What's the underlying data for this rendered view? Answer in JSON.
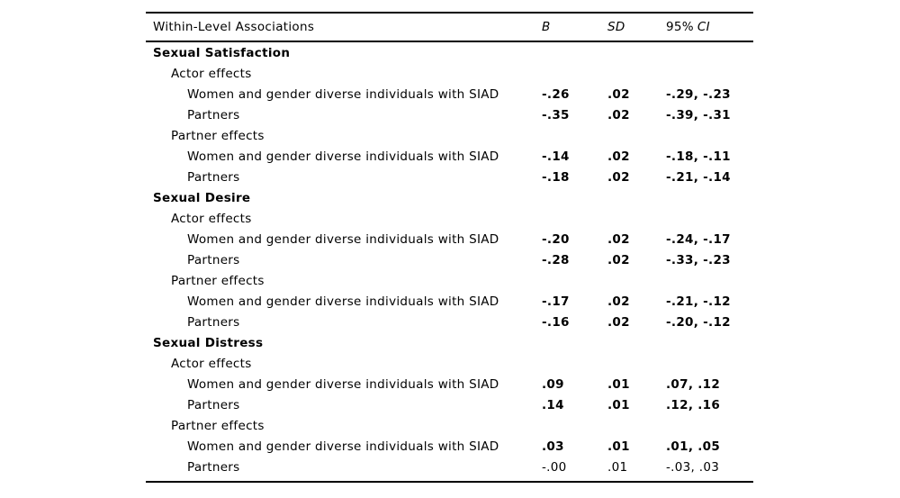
{
  "table": {
    "header": {
      "label": "Within-Level Associations",
      "b": "B",
      "sd": "SD",
      "ci_prefix": "95%",
      "ci": "CI"
    },
    "rows": [
      {
        "label": "Sexual Satisfaction",
        "b": "",
        "sd": "",
        "ci": ""
      },
      {
        "label": "Actor effects",
        "b": "",
        "sd": "",
        "ci": ""
      },
      {
        "label": "Women and gender diverse individuals with SIAD",
        "b": "-.26",
        "sd": ".02",
        "ci": "-.29, -.23"
      },
      {
        "label": "Partners",
        "b": "-.35",
        "sd": ".02",
        "ci": "-.39, -.31"
      },
      {
        "label": "Partner effects",
        "b": "",
        "sd": "",
        "ci": ""
      },
      {
        "label": "Women and gender diverse individuals with SIAD",
        "b": "-.14",
        "sd": ".02",
        "ci": "-.18, -.11"
      },
      {
        "label": "Partners",
        "b": "-.18",
        "sd": ".02",
        "ci": "-.21, -.14"
      },
      {
        "label": "Sexual Desire",
        "b": "",
        "sd": "",
        "ci": ""
      },
      {
        "label": "Actor effects",
        "b": "",
        "sd": "",
        "ci": ""
      },
      {
        "label": "Women and gender diverse individuals with SIAD",
        "b": "-.20",
        "sd": ".02",
        "ci": "-.24, -.17"
      },
      {
        "label": "Partners",
        "b": "-.28",
        "sd": ".02",
        "ci": "-.33, -.23"
      },
      {
        "label": "Partner effects",
        "b": "",
        "sd": "",
        "ci": ""
      },
      {
        "label": "Women and gender diverse individuals with SIAD",
        "b": "-.17",
        "sd": ".02",
        "ci": "-.21, -.12"
      },
      {
        "label": "Partners",
        "b": "-.16",
        "sd": ".02",
        "ci": "-.20, -.12"
      },
      {
        "label": "Sexual Distress",
        "b": "",
        "sd": "",
        "ci": ""
      },
      {
        "label": "Actor effects",
        "b": "",
        "sd": "",
        "ci": ""
      },
      {
        "label": "Women and gender diverse individuals with SIAD",
        "b": ".09",
        "sd": ".01",
        "ci": ".07, .12"
      },
      {
        "label": "Partners",
        "b": ".14",
        "sd": ".01",
        "ci": ".12, .16"
      },
      {
        "label": "Partner effects",
        "b": "",
        "sd": "",
        "ci": ""
      },
      {
        "label": "Women and gender diverse individuals with SIAD",
        "b": ".03",
        "sd": ".01",
        "ci": ".01, .05"
      },
      {
        "label": "Partners",
        "b": "-.00",
        "sd": ".01",
        "ci": "-.03, .03"
      }
    ]
  }
}
